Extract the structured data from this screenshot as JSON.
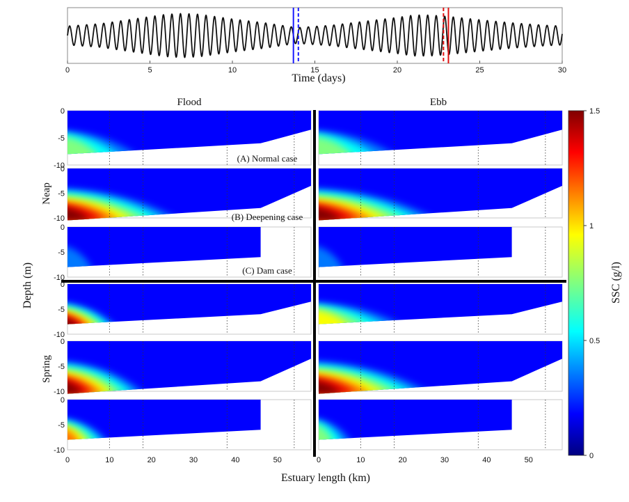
{
  "chart_data": [
    {
      "type": "line",
      "panel": "tidal-timeseries",
      "xlabel": "Time (days)",
      "xlim": [
        0,
        30
      ],
      "xticks": [
        0,
        5,
        10,
        15,
        20,
        25,
        30
      ],
      "ylim": [
        -1.6,
        1.6
      ],
      "series": [
        {
          "sampling": "per-day-peak-amplitude",
          "x": [
            0,
            2,
            4,
            6,
            7,
            8,
            10,
            12,
            13.9,
            16,
            18,
            20,
            21,
            22,
            23.2,
            25,
            27,
            29,
            30
          ],
          "values": [
            0.6,
            0.75,
            1.05,
            1.35,
            1.4,
            1.35,
            1.05,
            0.8,
            0.5,
            0.65,
            0.9,
            1.15,
            1.3,
            1.3,
            1.2,
            1.0,
            0.8,
            0.65,
            0.6
          ]
        }
      ],
      "markers": [
        {
          "x": 13.7,
          "style": "solid",
          "color": "#1a1aff"
        },
        {
          "x": 14.0,
          "style": "dashed",
          "color": "#1a1aff"
        },
        {
          "x": 22.8,
          "style": "dashed",
          "color": "#e01010"
        },
        {
          "x": 23.1,
          "style": "solid",
          "color": "#e01010"
        }
      ]
    },
    {
      "type": "heatmap",
      "panel": "ssc-sections",
      "columns": [
        "Flood",
        "Ebb"
      ],
      "rows": [
        "Neap",
        "Spring"
      ],
      "cases": [
        "(A) Normal case",
        "(B) Deepening case",
        "(C) Dam case"
      ],
      "xlabel": "Estuary length (km)",
      "ylabel": "Depth (m)",
      "xlim": [
        0,
        58
      ],
      "xticks": [
        0,
        10,
        20,
        30,
        40,
        50
      ],
      "ylim": [
        -10,
        0
      ],
      "yticks": [
        0,
        -5,
        -10
      ],
      "station_lines_km": [
        10,
        18,
        38,
        54
      ],
      "colorbar": {
        "label": "SSC (g/l)",
        "range": [
          0,
          1.5
        ],
        "ticks": [
          0,
          0.5,
          1,
          1.5
        ]
      },
      "profiles": {
        "normal": {
          "x": [
            0,
            46,
            58
          ],
          "bottom": [
            -8,
            -6,
            -3.5
          ]
        },
        "deepening": {
          "x": [
            0,
            46,
            58
          ],
          "bottom": [
            -10.5,
            -8,
            -3.5
          ]
        },
        "dam": {
          "x": [
            0,
            46
          ],
          "bottom": [
            -8,
            -6
          ]
        }
      },
      "sediment_fronts": [
        {
          "row": "Neap",
          "case": "normal",
          "column": "Flood",
          "front_km": 18,
          "peak_ssc": 0.9
        },
        {
          "row": "Neap",
          "case": "normal",
          "column": "Ebb",
          "front_km": 20,
          "peak_ssc": 0.75
        },
        {
          "row": "Neap",
          "case": "deepening",
          "column": "Flood",
          "front_km": 30,
          "peak_ssc": 1.5
        },
        {
          "row": "Neap",
          "case": "deepening",
          "column": "Ebb",
          "front_km": 32,
          "peak_ssc": 1.5
        },
        {
          "row": "Neap",
          "case": "dam",
          "column": "Flood",
          "front_km": 6,
          "peak_ssc": 0.35
        },
        {
          "row": "Neap",
          "case": "dam",
          "column": "Ebb",
          "front_km": 6,
          "peak_ssc": 0.35
        },
        {
          "row": "Spring",
          "case": "normal",
          "column": "Flood",
          "front_km": 12,
          "peak_ssc": 1.5
        },
        {
          "row": "Spring",
          "case": "normal",
          "column": "Ebb",
          "front_km": 22,
          "peak_ssc": 1.1
        },
        {
          "row": "Spring",
          "case": "deepening",
          "column": "Flood",
          "front_km": 20,
          "peak_ssc": 1.5
        },
        {
          "row": "Spring",
          "case": "deepening",
          "column": "Ebb",
          "front_km": 30,
          "peak_ssc": 1.5
        },
        {
          "row": "Spring",
          "case": "dam",
          "column": "Flood",
          "front_km": 10,
          "peak_ssc": 1.3
        },
        {
          "row": "Spring",
          "case": "dam",
          "column": "Ebb",
          "front_km": 8,
          "peak_ssc": 0.8
        }
      ]
    }
  ]
}
